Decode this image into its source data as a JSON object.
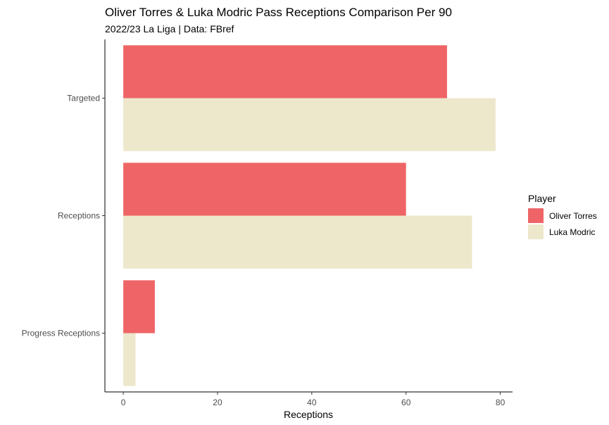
{
  "chart_data": {
    "type": "bar",
    "orientation": "horizontal",
    "title": "Oliver Torres & Luka Modric Pass Receptions Comparison Per 90",
    "subtitle": "2022/23 La Liga | Data: FBref",
    "xlabel": "Receptions",
    "ylabel": "",
    "xlim": [
      -3.9,
      82.6
    ],
    "x_ticks": [
      0,
      20,
      40,
      60,
      80
    ],
    "categories": [
      "Targeted",
      "Receptions",
      "Progress Receptions"
    ],
    "series": [
      {
        "name": "Oliver Torres",
        "color": "#ef6567",
        "values": [
          68.7,
          60.0,
          6.7
        ]
      },
      {
        "name": "Luka Modric",
        "color": "#ede7cc",
        "values": [
          79.0,
          74.0,
          2.6
        ]
      }
    ],
    "legend": {
      "title": "Player",
      "position": "right"
    },
    "grid": false
  }
}
